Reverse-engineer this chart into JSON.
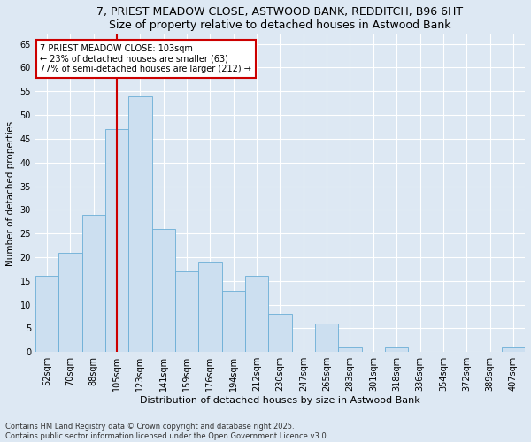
{
  "title": "7, PRIEST MEADOW CLOSE, ASTWOOD BANK, REDDITCH, B96 6HT",
  "subtitle": "Size of property relative to detached houses in Astwood Bank",
  "xlabel": "Distribution of detached houses by size in Astwood Bank",
  "ylabel": "Number of detached properties",
  "categories": [
    "52sqm",
    "70sqm",
    "88sqm",
    "105sqm",
    "123sqm",
    "141sqm",
    "159sqm",
    "176sqm",
    "194sqm",
    "212sqm",
    "230sqm",
    "247sqm",
    "265sqm",
    "283sqm",
    "301sqm",
    "318sqm",
    "336sqm",
    "354sqm",
    "372sqm",
    "389sqm",
    "407sqm"
  ],
  "values": [
    16,
    21,
    29,
    47,
    54,
    26,
    17,
    19,
    13,
    16,
    8,
    0,
    6,
    1,
    0,
    1,
    0,
    0,
    0,
    0,
    1
  ],
  "bar_color": "#ccdff0",
  "bar_edge_color": "#6aaed6",
  "annotation_line1": "7 PRIEST MEADOW CLOSE: 103sqm",
  "annotation_line2": "← 23% of detached houses are smaller (63)",
  "annotation_line3": "77% of semi-detached houses are larger (212) →",
  "annotation_box_color": "#ffffff",
  "annotation_box_edge": "#cc0000",
  "vline_color": "#cc0000",
  "vline_x": 3.5,
  "ylim": [
    0,
    67
  ],
  "yticks": [
    0,
    5,
    10,
    15,
    20,
    25,
    30,
    35,
    40,
    45,
    50,
    55,
    60,
    65
  ],
  "footnote1": "Contains HM Land Registry data © Crown copyright and database right 2025.",
  "footnote2": "Contains public sector information licensed under the Open Government Licence v3.0.",
  "bg_color": "#dde8f3",
  "plot_bg_color": "#dde8f3",
  "title_fontsize": 9,
  "ylabel_fontsize": 7.5,
  "xlabel_fontsize": 8,
  "tick_fontsize": 7,
  "annotation_fontsize": 7,
  "footnote_fontsize": 6
}
